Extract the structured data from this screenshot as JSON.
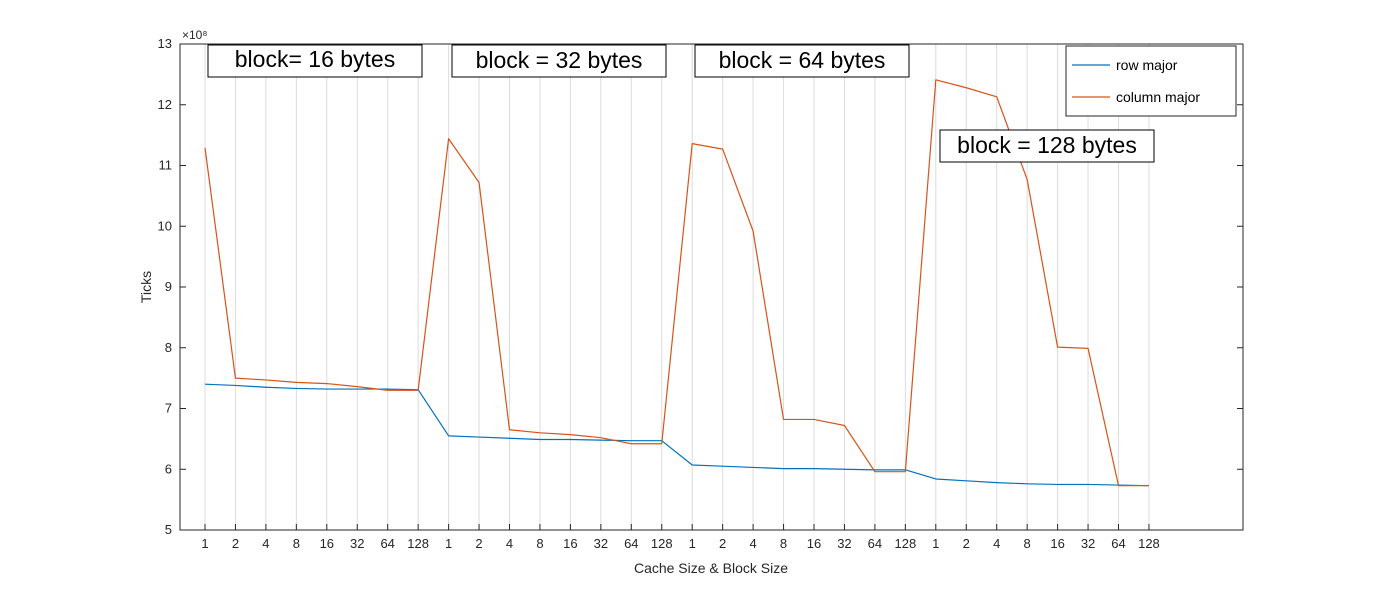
{
  "colors": {
    "row_major": "#0072BD",
    "column_major": "#D95319",
    "grid": "#dcdcdc",
    "axis": "#262626"
  },
  "chart_data": {
    "type": "line",
    "xlabel": "Cache Size & Block Size",
    "ylabel": "Ticks",
    "y_exponent_label": "×10⁸",
    "ylim": [
      5,
      13
    ],
    "y_ticks": [
      5,
      6,
      7,
      8,
      9,
      10,
      11,
      12,
      13
    ],
    "y_tick_labels": [
      "5",
      "6",
      "7",
      "8",
      "9",
      "10",
      "11",
      "12",
      "13"
    ],
    "categories": [
      "1",
      "2",
      "4",
      "8",
      "16",
      "32",
      "64",
      "128",
      "1",
      "2",
      "4",
      "8",
      "16",
      "32",
      "64",
      "128",
      "1",
      "2",
      "4",
      "8",
      "16",
      "32",
      "64",
      "128",
      "1",
      "2",
      "4",
      "8",
      "16",
      "32",
      "64",
      "128"
    ],
    "grid": "vertical",
    "legend_position": "top-right",
    "series": [
      {
        "name": "row major",
        "color": "#0072BD",
        "values": [
          7.4,
          7.38,
          7.35,
          7.33,
          7.32,
          7.32,
          7.32,
          7.31,
          6.55,
          6.53,
          6.51,
          6.49,
          6.49,
          6.48,
          6.47,
          6.47,
          6.07,
          6.05,
          6.03,
          6.01,
          6.01,
          6.0,
          5.99,
          5.99,
          5.84,
          5.81,
          5.78,
          5.76,
          5.75,
          5.75,
          5.74,
          5.73
        ]
      },
      {
        "name": "column major",
        "color": "#D95319",
        "values": [
          11.29,
          7.5,
          7.47,
          7.43,
          7.41,
          7.36,
          7.3,
          7.3,
          11.44,
          10.72,
          6.65,
          6.6,
          6.57,
          6.52,
          6.42,
          6.42,
          11.36,
          11.27,
          9.92,
          6.82,
          6.82,
          6.72,
          5.96,
          5.96,
          12.41,
          12.28,
          12.13,
          10.77,
          8.01,
          7.99,
          5.73,
          5.73
        ]
      }
    ],
    "annotations": [
      "block= 16 bytes",
      "block = 32 bytes",
      "block = 64 bytes",
      "block = 128 bytes"
    ]
  }
}
